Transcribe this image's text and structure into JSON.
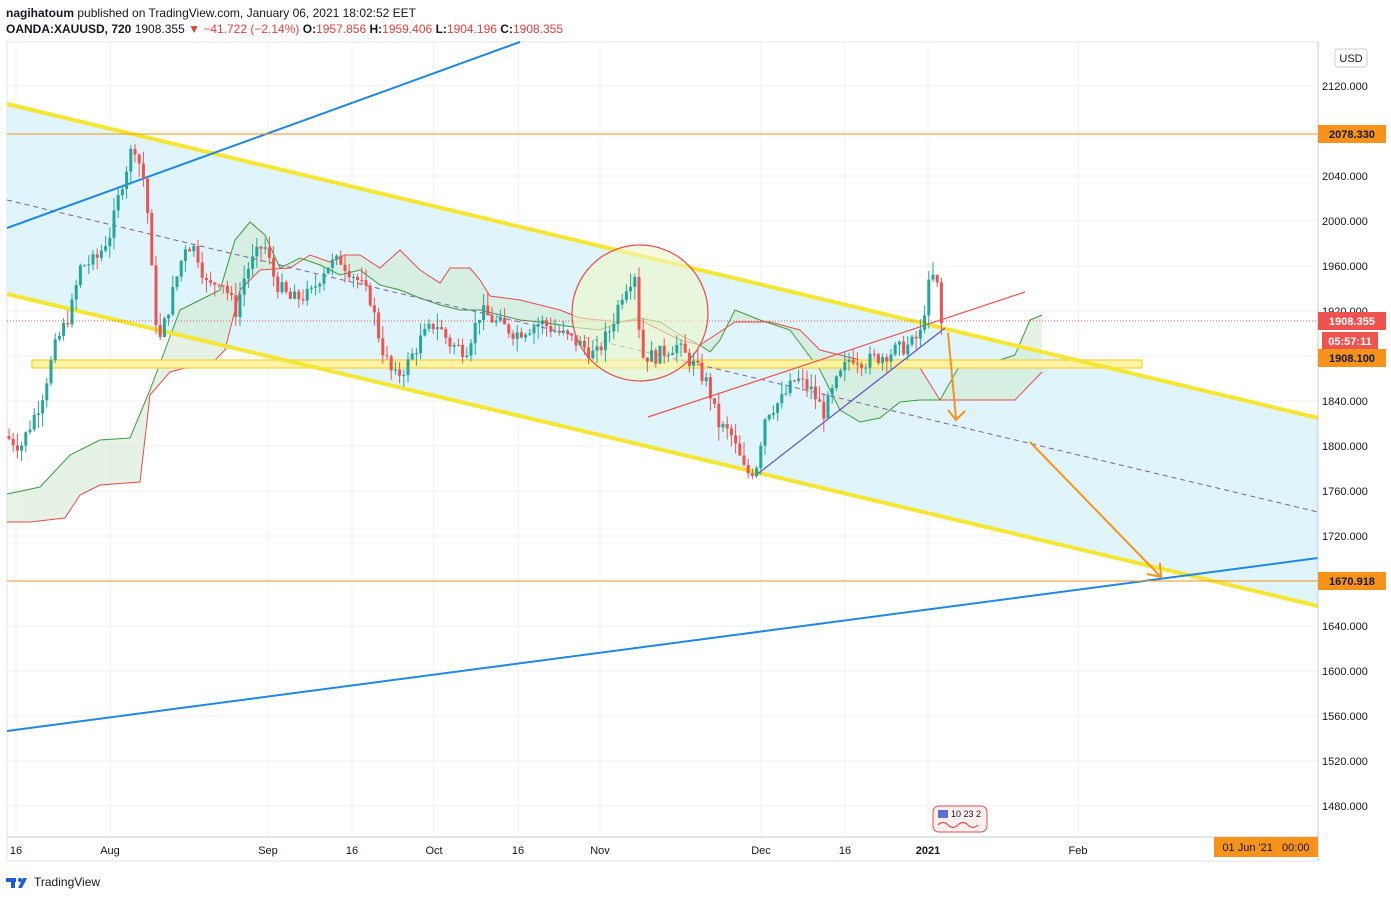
{
  "header": {
    "author": "nagihatoum",
    "published_text": "published on TradingView.com, January 06, 2021 18:02:52 EET",
    "symbol": "OANDA:XAUUSD, 720",
    "last": "1908.355",
    "change": "▼ −41.722 (−2.14%)",
    "o_label": "O:",
    "o_value": "1957.856",
    "h_label": "H:",
    "h_value": "1959.406",
    "l_label": "L:",
    "l_value": "1904.196",
    "c_label": "C:",
    "c_value": "1908.355"
  },
  "footer": {
    "brand": "TradingView"
  },
  "colors": {
    "up": "#26a69a",
    "down": "#ef5350",
    "channel": "#f5e633",
    "channel_fill": "#dff5fb",
    "trend_blue": "#1e88e5",
    "orange": "#f7931a",
    "kumo_green": "#3d9a3d",
    "kumo_red": "#e84b4b"
  },
  "chart_data": {
    "type": "candlestick",
    "title": "",
    "ylabel": "",
    "currency_label": "USD",
    "ylim": [
      1440,
      2160
    ],
    "y_ticks": [
      "2120.000",
      "2080.000",
      "2040.000",
      "2000.000",
      "1960.000",
      "1920.000",
      "1880.000",
      "1840.000",
      "1800.000",
      "1760.000",
      "1720.000",
      "1680.000",
      "1640.000",
      "1600.000",
      "1560.000",
      "1520.000",
      "1480.000"
    ],
    "x_ticks": [
      "16",
      "Aug",
      "Sep",
      "16",
      "Oct",
      "16",
      "Nov",
      "Dec",
      "16",
      "2021",
      "Feb"
    ],
    "price_labels": [
      {
        "name": "resistance",
        "value": "2078.330",
        "price": 2078.33
      },
      {
        "name": "last-price",
        "value": "1908.355",
        "price": 1908.355
      },
      {
        "name": "countdown",
        "value": "05:57:11"
      },
      {
        "name": "support",
        "value": "1908.100",
        "price": 1908.1
      },
      {
        "name": "target",
        "value": "1670.918",
        "price": 1670.918
      }
    ],
    "time_label": "01 Jun '21   00:00",
    "events_badge": "10 23  2",
    "open": 1957.856,
    "high": 1959.406,
    "low": 1904.196,
    "close": 1908.355
  }
}
